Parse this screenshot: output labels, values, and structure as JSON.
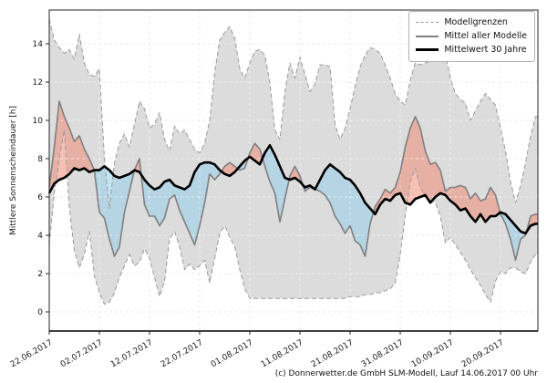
{
  "caption": "(c) Donnerwetter.de GmbH SLM-Modell, Lauf 14.06.2017 00 Uhr",
  "chart_data": {
    "type": "line",
    "ylabel": "Mittlere Sonnenscheindauer [h]",
    "xlabel": "",
    "x_tick_labels": [
      "22.06.2017",
      "02.07.2017",
      "12.07.2017",
      "22.07.2017",
      "01.08.2017",
      "11.08.2017",
      "21.08.2017",
      "31.08.2017",
      "10.09.2017",
      "20.09.2017"
    ],
    "x_tick_days": [
      0,
      10,
      20,
      30,
      40,
      50,
      60,
      70,
      80,
      90
    ],
    "x_span": 97.45,
    "y_ticks": [
      0,
      2,
      4,
      6,
      8,
      10,
      12,
      14
    ],
    "ylim": [
      -1,
      15.76
    ],
    "grid": true,
    "legend_position": "upper right",
    "legend": [
      {
        "label": "Modellgrenzen",
        "style": "dashed-gray"
      },
      {
        "label": "Mittel aller Modelle",
        "style": "solid-gray"
      },
      {
        "label": "Mittelwert 30 Jahre",
        "style": "thick-black"
      }
    ],
    "colors": {
      "envelope_fill": "#dcdcdc",
      "bounds_line": "#9a9a9a",
      "model_mean_line": "#7f7f7f",
      "climate_line": "#000000",
      "above_fill": "rgba(240,140,120,0.55)",
      "below_fill": "rgba(150,205,235,0.55)"
    },
    "series": [
      {
        "name": "Modellgrenze oben",
        "values": [
          15.3,
          14.2,
          13.8,
          13.5,
          13.7,
          13.2,
          14.5,
          13.0,
          12.4,
          12.3,
          12.7,
          8.0,
          5.4,
          7.8,
          8.8,
          9.3,
          8.6,
          9.8,
          11.0,
          10.6,
          9.6,
          9.8,
          10.4,
          9.0,
          8.4,
          9.7,
          9.3,
          9.5,
          9.0,
          8.5,
          8.3,
          8.8,
          10.0,
          12.5,
          14.2,
          14.6,
          14.9,
          14.3,
          12.7,
          12.2,
          13.0,
          13.6,
          13.7,
          13.4,
          12.0,
          9.5,
          9.0,
          11.5,
          13.0,
          12.2,
          13.3,
          12.4,
          11.5,
          11.9,
          12.9,
          12.9,
          12.8,
          9.8,
          9.0,
          9.6,
          10.6,
          11.8,
          12.8,
          13.4,
          13.8,
          13.7,
          13.5,
          12.9,
          12.2,
          11.4,
          11.0,
          10.8,
          12.1,
          13.0,
          12.9,
          13.0,
          13.1,
          13.2,
          13.4,
          13.5,
          12.2,
          11.4,
          11.1,
          10.9,
          10.0,
          10.5,
          11.0,
          11.4,
          11.1,
          10.8,
          9.6,
          8.4,
          6.8,
          5.7,
          6.6,
          7.8,
          9.2,
          10.2
        ]
      },
      {
        "name": "Modellgrenze unten",
        "values": [
          3.5,
          6.2,
          8.0,
          9.5,
          5.5,
          3.2,
          2.3,
          3.0,
          4.2,
          1.9,
          1.0,
          0.4,
          0.5,
          1.0,
          1.8,
          2.4,
          3.0,
          2.4,
          2.6,
          3.3,
          2.8,
          1.8,
          0.8,
          1.6,
          3.8,
          4.2,
          3.4,
          2.2,
          2.5,
          2.2,
          2.4,
          2.7,
          1.5,
          2.8,
          4.1,
          4.5,
          3.9,
          3.4,
          2.2,
          1.2,
          0.7,
          0.7,
          0.7,
          0.7,
          0.7,
          0.7,
          0.7,
          0.7,
          0.7,
          0.7,
          0.7,
          0.7,
          0.7,
          0.7,
          0.7,
          0.7,
          0.7,
          0.7,
          0.7,
          0.7,
          0.8,
          0.8,
          0.8,
          0.9,
          0.9,
          1.0,
          1.0,
          1.1,
          1.2,
          1.5,
          3.0,
          5.0,
          6.8,
          7.5,
          6.5,
          6.0,
          5.8,
          5.7,
          5.0,
          3.6,
          3.9,
          3.5,
          3.1,
          2.7,
          2.2,
          1.8,
          1.4,
          0.9,
          0.5,
          1.6,
          2.1,
          2.0,
          2.3,
          2.3,
          2.1,
          2.0,
          2.6,
          3.0
        ]
      },
      {
        "name": "Mittel aller Modelle",
        "values": [
          6.5,
          8.6,
          11.0,
          10.2,
          9.6,
          8.9,
          9.2,
          8.5,
          8.0,
          7.4,
          5.2,
          4.9,
          3.8,
          2.9,
          3.4,
          5.2,
          6.3,
          7.4,
          8.0,
          5.6,
          5.0,
          5.0,
          4.5,
          4.9,
          5.9,
          6.1,
          5.3,
          4.7,
          4.1,
          3.5,
          4.5,
          5.7,
          7.2,
          6.9,
          7.2,
          7.6,
          7.8,
          7.6,
          7.4,
          7.5,
          8.3,
          8.8,
          8.5,
          7.6,
          6.8,
          6.2,
          4.7,
          5.9,
          7.1,
          7.6,
          7.1,
          6.3,
          6.5,
          6.4,
          6.3,
          6.1,
          5.7,
          5.0,
          4.6,
          4.1,
          4.5,
          3.7,
          3.5,
          2.9,
          4.6,
          5.5,
          5.9,
          6.4,
          6.2,
          6.5,
          7.3,
          8.6,
          9.6,
          10.2,
          9.6,
          8.4,
          7.7,
          7.8,
          7.4,
          6.3,
          6.5,
          6.5,
          6.6,
          6.5,
          5.9,
          6.2,
          5.8,
          5.9,
          6.5,
          6.1,
          5.1,
          4.6,
          3.8,
          2.7,
          3.8,
          4.0,
          5.0,
          5.1
        ]
      },
      {
        "name": "Mittelwert 30 Jahre",
        "values": [
          6.2,
          6.7,
          6.9,
          7.0,
          7.2,
          7.5,
          7.4,
          7.5,
          7.3,
          7.4,
          7.4,
          7.6,
          7.4,
          7.1,
          7.0,
          7.1,
          7.2,
          7.4,
          7.3,
          6.9,
          6.6,
          6.4,
          6.5,
          6.8,
          6.9,
          6.6,
          6.5,
          6.4,
          6.6,
          7.3,
          7.7,
          7.8,
          7.8,
          7.7,
          7.4,
          7.2,
          7.1,
          7.3,
          7.6,
          7.9,
          8.1,
          7.9,
          7.7,
          8.3,
          8.7,
          8.2,
          7.6,
          7.0,
          6.9,
          7.0,
          6.8,
          6.5,
          6.6,
          6.4,
          6.9,
          7.4,
          7.7,
          7.5,
          7.3,
          7.0,
          6.9,
          6.6,
          6.2,
          5.7,
          5.4,
          5.1,
          5.6,
          5.9,
          5.8,
          6.1,
          6.2,
          5.7,
          5.6,
          5.9,
          6.0,
          6.1,
          5.7,
          6.0,
          6.2,
          6.1,
          5.8,
          5.6,
          5.3,
          5.4,
          5.0,
          4.7,
          5.1,
          4.7,
          5.0,
          5.0,
          5.2,
          5.1,
          4.8,
          4.5,
          4.2,
          4.1,
          4.5,
          4.6
        ]
      }
    ]
  }
}
